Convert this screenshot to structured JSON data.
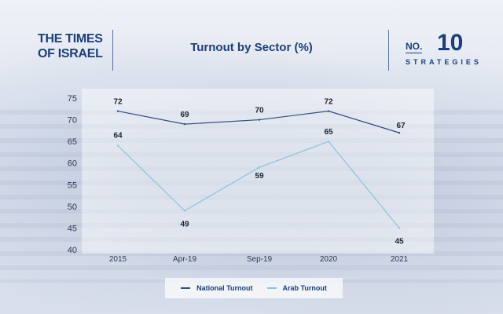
{
  "header": {
    "logo_line1": "THE TIMES",
    "logo_line2": "OF ISRAEL",
    "title": "Turnout by Sector (%)",
    "badge_no": "NO.",
    "badge_num": "10",
    "badge_text": "STRATEGIES"
  },
  "colors": {
    "brand": "#1a3f7a",
    "national": "#2c4f82",
    "arab": "#8cc4dc"
  },
  "chart_data": {
    "type": "line",
    "title": "Turnout by Sector (%)",
    "categories": [
      "2015",
      "Apr-19",
      "Sep-19",
      "2020",
      "2021"
    ],
    "ylim": [
      40,
      75
    ],
    "yticks": [
      40,
      45,
      50,
      55,
      60,
      65,
      70,
      75
    ],
    "grid": false,
    "legend_position": "bottom",
    "series": [
      {
        "name": "National Turnout",
        "values": [
          72,
          69,
          70,
          72,
          67
        ]
      },
      {
        "name": "Arab Turnout",
        "values": [
          64,
          49,
          59,
          65,
          45
        ]
      }
    ]
  }
}
